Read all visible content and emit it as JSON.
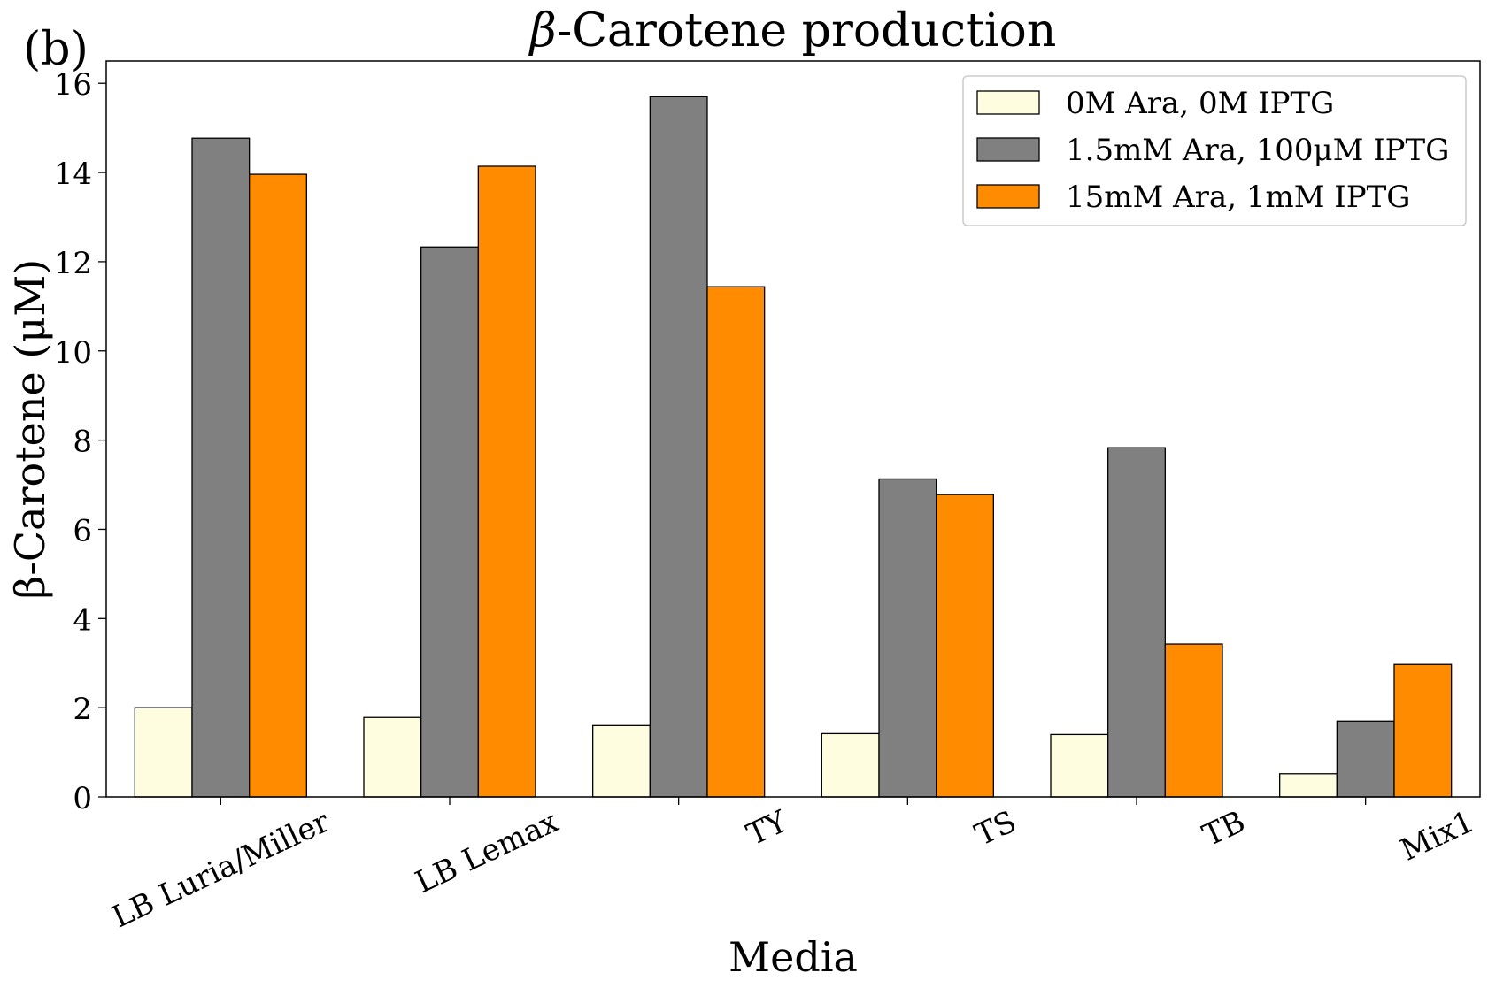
{
  "panel_label": "(b)",
  "chart_data": {
    "type": "bar",
    "title_symbol": "β",
    "title_rest": "-Carotene production",
    "xlabel": "Media",
    "ylabel": "β-Carotene (μM)",
    "ylim": [
      0,
      16.5
    ],
    "yticks": [
      0,
      2,
      4,
      6,
      8,
      10,
      12,
      14,
      16
    ],
    "categories": [
      "LB Luria/Miller",
      "LB Lemax",
      "TY",
      "TS",
      "TB",
      "Mix1"
    ],
    "legend_position": "top-right",
    "grid": false,
    "series": [
      {
        "name": "0M Ara, 0M IPTG",
        "color": "#fffde0",
        "values": [
          2.0,
          1.78,
          1.6,
          1.42,
          1.4,
          0.52
        ]
      },
      {
        "name": "1.5mM Ara, 100μM IPTG",
        "color": "#808080",
        "values": [
          14.77,
          12.33,
          15.7,
          7.13,
          7.83,
          1.7
        ]
      },
      {
        "name": "15mM Ara, 1mM IPTG",
        "color": "#ff8c00",
        "values": [
          13.96,
          14.14,
          11.44,
          6.78,
          3.43,
          2.97
        ]
      }
    ]
  }
}
